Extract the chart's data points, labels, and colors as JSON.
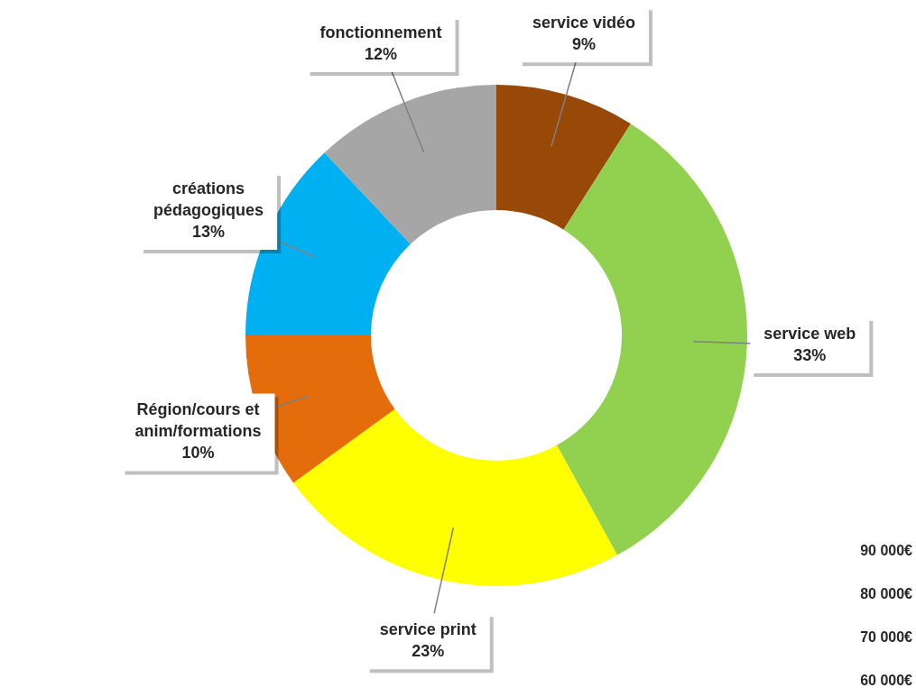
{
  "chart_data": {
    "type": "donut",
    "categories": [
      "service vidéo",
      "service web",
      "service print",
      "Région/cours et anim/formations",
      "créations pédagogiques",
      "fonctionnement"
    ],
    "values": [
      9,
      33,
      23,
      10,
      13,
      12
    ],
    "value_labels": [
      "9%",
      "33%",
      "23%",
      "10%",
      "13%",
      "12%"
    ],
    "colors": [
      "#984807",
      "#92d050",
      "#ffff00",
      "#e46c0a",
      "#00b0f0",
      "#a6a6a6"
    ],
    "annotations": [
      "90 000€",
      "80 000€",
      "70 000€",
      "60 000€"
    ],
    "legend": false
  }
}
